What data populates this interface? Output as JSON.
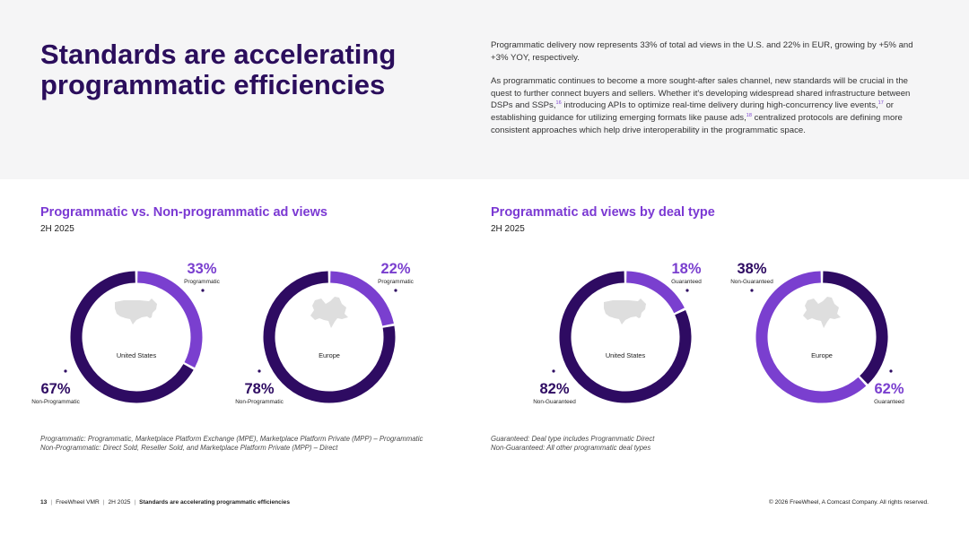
{
  "headline": "Standards are accelerating programmatic efficiencies",
  "intro": {
    "p1": "Programmatic delivery now represents 33% of total ad views in the U.S. and 22% in EUR, growing by +5% and +3% YOY, respectively.",
    "p2_a": "As programmatic continues to become a more sought-after sales channel, new standards will be crucial in the quest to further connect buyers and sellers. Whether it's developing widespread shared infrastructure between DSPs and SSPs,",
    "fn16": "16",
    "p2_b": " introducing APIs to optimize real-time delivery during high-concurrency live events,",
    "fn17": "17",
    "p2_c": " or establishing guidance for utilizing emerging formats like pause ads,",
    "fn18": "18",
    "p2_d": " centralized protocols are defining more consistent approaches which help drive interoperability in the programmatic space."
  },
  "left_section": {
    "title": "Programmatic vs. Non-programmatic ad views",
    "subtitle": "2H 2025",
    "note_line1": "Programmatic: Programmatic, Marketplace Platform Exchange (MPE), Marketplace Platform Private (MPP) – Programmatic",
    "note_line2": "Non-Programmatic: Direct Sold, Reseller Sold, and Marketplace Platform Private (MPP) – Direct"
  },
  "right_section": {
    "title": "Programmatic ad views by deal type",
    "subtitle": "2H 2025",
    "note_line1": "Guaranteed: Deal type includes Programmatic Direct",
    "note_line2": "Non-Guaranteed: All other programmatic deal types"
  },
  "colors": {
    "dark": "#2e0b62",
    "light": "#7a3fcf",
    "map": "#dedede",
    "headline": "#2b0e5c"
  },
  "chart_data": [
    {
      "type": "pie",
      "title": "United States",
      "series": [
        {
          "name": "Programmatic",
          "value": 33,
          "label": "33%"
        },
        {
          "name": "Non-Programmatic",
          "value": 67,
          "label": "67%"
        }
      ]
    },
    {
      "type": "pie",
      "title": "Europe",
      "series": [
        {
          "name": "Programmatic",
          "value": 22,
          "label": "22%"
        },
        {
          "name": "Non-Programmatic",
          "value": 78,
          "label": "78%"
        }
      ]
    },
    {
      "type": "pie",
      "title": "United States",
      "series": [
        {
          "name": "Guaranteed",
          "value": 18,
          "label": "18%"
        },
        {
          "name": "Non-Guaranteed",
          "value": 82,
          "label": "82%"
        }
      ]
    },
    {
      "type": "pie",
      "title": "Europe",
      "series": [
        {
          "name": "Non-Guaranteed",
          "value": 38,
          "label": "38%"
        },
        {
          "name": "Guaranteed",
          "value": 62,
          "label": "62%"
        }
      ]
    }
  ],
  "footer": {
    "page": "13",
    "brand": "FreeWheel VMR",
    "period": "2H 2025",
    "section": "Standards are accelerating programmatic efficiencies",
    "copyright": "© 2026 FreeWheel, A Comcast Company. All rights reserved."
  }
}
